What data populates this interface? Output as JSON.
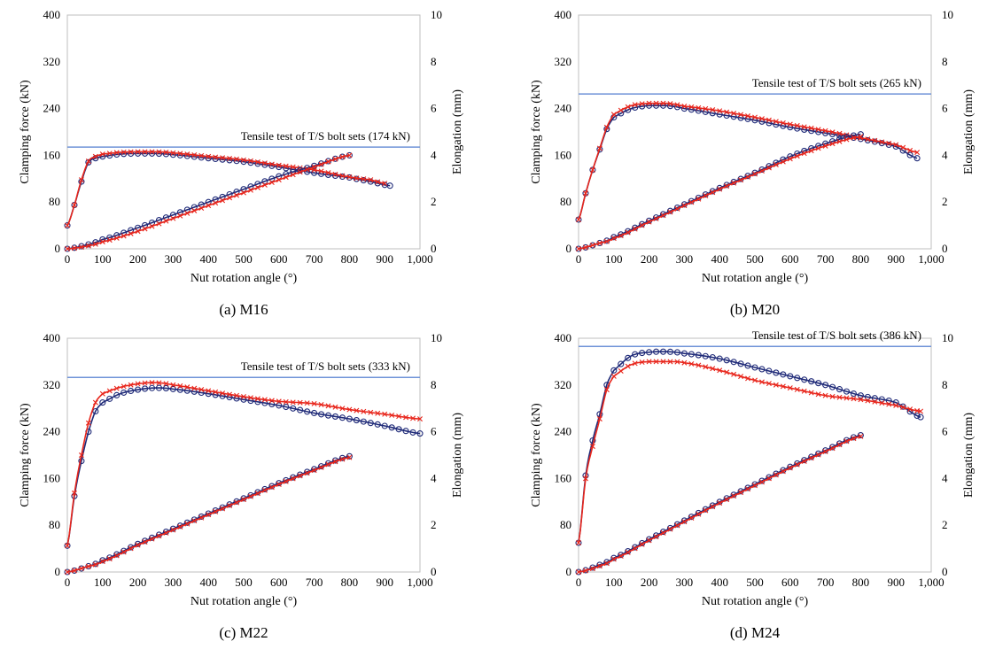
{
  "figure": {
    "captions": [
      "(a) M16",
      "(b) M20",
      "(c) M22",
      "(d) M24"
    ]
  },
  "colors": {
    "red": "#e8261c",
    "blue": "#1f2a78",
    "ref": "#6f93d8",
    "axis": "#bfbfbf"
  },
  "chart_data": [
    {
      "type": "line",
      "panel": "a",
      "caption": "(a) M16",
      "xlabel": "Nut rotation angle (°)",
      "ylabel": "Clamping force (kN)",
      "y2label": "Elongation (mm)",
      "xlim": [
        0,
        1000
      ],
      "ylim": [
        0,
        400
      ],
      "y2lim": [
        0,
        10
      ],
      "xticks": [
        "0",
        "100",
        "200",
        "300",
        "400",
        "500",
        "600",
        "700",
        "800",
        "900",
        "1,000"
      ],
      "yticks": [
        "0",
        "80",
        "160",
        "240",
        "320",
        "400"
      ],
      "y2ticks": [
        "0",
        "2",
        "4",
        "6",
        "8",
        "10"
      ],
      "reference": {
        "value": 174,
        "label": "Tensile test of T/S bolt sets (174 kN)"
      },
      "series": [
        {
          "name": "Clamping force (blue, circles)",
          "axis": "left",
          "marker": "circle",
          "color": "#1f2a78",
          "x": [
            0,
            20,
            40,
            60,
            80,
            100,
            150,
            200,
            250,
            300,
            400,
            500,
            600,
            700,
            800,
            860,
            915
          ],
          "y": [
            40,
            75,
            115,
            148,
            155,
            158,
            162,
            163,
            163,
            161,
            155,
            149,
            140,
            130,
            122,
            115,
            108
          ]
        },
        {
          "name": "Clamping force (red, crosses)",
          "axis": "left",
          "marker": "cross",
          "color": "#e8261c",
          "x": [
            0,
            20,
            40,
            60,
            80,
            100,
            150,
            200,
            250,
            300,
            400,
            500,
            600,
            700,
            800,
            860,
            900
          ],
          "y": [
            40,
            75,
            118,
            150,
            158,
            162,
            165,
            166,
            166,
            164,
            158,
            152,
            143,
            135,
            123,
            118,
            112
          ]
        },
        {
          "name": "Elongation (blue, circles)",
          "axis": "right",
          "marker": "circle",
          "color": "#1f2a78",
          "x": [
            0,
            50,
            100,
            200,
            300,
            400,
            500,
            600,
            700,
            800
          ],
          "y": [
            0,
            0.15,
            0.4,
            0.9,
            1.45,
            2.0,
            2.55,
            3.1,
            3.55,
            4.0
          ]
        },
        {
          "name": "Elongation (red, crosses)",
          "axis": "right",
          "marker": "cross",
          "color": "#e8261c",
          "x": [
            0,
            50,
            100,
            200,
            300,
            400,
            500,
            600,
            700,
            800
          ],
          "y": [
            0,
            0.1,
            0.3,
            0.75,
            1.3,
            1.85,
            2.4,
            2.95,
            3.5,
            4.0
          ]
        }
      ]
    },
    {
      "type": "line",
      "panel": "b",
      "caption": "(b) M20",
      "xlabel": "Nut rotation angle (°)",
      "ylabel": "Clamping force (kN)",
      "y2label": "Elongation (mm)",
      "xlim": [
        0,
        1000
      ],
      "ylim": [
        0,
        400
      ],
      "y2lim": [
        0,
        10
      ],
      "xticks": [
        "0",
        "100",
        "200",
        "300",
        "400",
        "500",
        "600",
        "700",
        "800",
        "900",
        "1,000"
      ],
      "yticks": [
        "0",
        "80",
        "160",
        "240",
        "320",
        "400"
      ],
      "y2ticks": [
        "0",
        "2",
        "4",
        "6",
        "8",
        "10"
      ],
      "reference": {
        "value": 265,
        "label": "Tensile test of T/S bolt sets (265 kN)"
      },
      "series": [
        {
          "name": "Clamping force (blue, circles)",
          "axis": "left",
          "marker": "circle",
          "color": "#1f2a78",
          "x": [
            0,
            20,
            40,
            60,
            80,
            100,
            150,
            200,
            250,
            300,
            400,
            500,
            600,
            700,
            800,
            900,
            960
          ],
          "y": [
            50,
            95,
            135,
            170,
            205,
            225,
            240,
            245,
            245,
            240,
            230,
            220,
            208,
            198,
            188,
            175,
            155
          ]
        },
        {
          "name": "Clamping force (red, crosses)",
          "axis": "left",
          "marker": "cross",
          "color": "#e8261c",
          "x": [
            0,
            20,
            40,
            60,
            80,
            100,
            150,
            200,
            250,
            300,
            400,
            500,
            600,
            700,
            800,
            900,
            960
          ],
          "y": [
            50,
            95,
            135,
            172,
            208,
            230,
            245,
            249,
            249,
            244,
            236,
            225,
            213,
            202,
            190,
            178,
            165
          ]
        },
        {
          "name": "Elongation (blue, circles)",
          "axis": "right",
          "marker": "circle",
          "color": "#1f2a78",
          "x": [
            0,
            50,
            100,
            200,
            300,
            400,
            500,
            600,
            700,
            800
          ],
          "y": [
            0,
            0.2,
            0.5,
            1.2,
            1.9,
            2.6,
            3.25,
            3.95,
            4.5,
            4.9
          ]
        },
        {
          "name": "Elongation (red, crosses)",
          "axis": "right",
          "marker": "cross",
          "color": "#e8261c",
          "x": [
            0,
            50,
            100,
            200,
            300,
            400,
            500,
            600,
            700,
            800
          ],
          "y": [
            0,
            0.2,
            0.45,
            1.15,
            1.85,
            2.55,
            3.2,
            3.85,
            4.4,
            4.8
          ]
        }
      ]
    },
    {
      "type": "line",
      "panel": "c",
      "caption": "(c) M22",
      "xlabel": "Nut rotation angle (°)",
      "ylabel": "Clamping force (kN)",
      "y2label": "Elongation (mm)",
      "xlim": [
        0,
        1000
      ],
      "ylim": [
        0,
        400
      ],
      "y2lim": [
        0,
        10
      ],
      "xticks": [
        "0",
        "100",
        "200",
        "300",
        "400",
        "500",
        "600",
        "700",
        "800",
        "900",
        "1,000"
      ],
      "yticks": [
        "0",
        "80",
        "160",
        "240",
        "320",
        "400"
      ],
      "y2ticks": [
        "0",
        "2",
        "4",
        "6",
        "8",
        "10"
      ],
      "reference": {
        "value": 333,
        "label": "Tensile test of T/S bolt sets (333 kN)"
      },
      "series": [
        {
          "name": "Clamping force (blue, circles)",
          "axis": "left",
          "marker": "circle",
          "color": "#1f2a78",
          "x": [
            0,
            20,
            40,
            60,
            80,
            100,
            150,
            200,
            250,
            300,
            400,
            500,
            600,
            700,
            800,
            900,
            1000
          ],
          "y": [
            45,
            130,
            190,
            240,
            275,
            290,
            305,
            312,
            315,
            313,
            305,
            295,
            285,
            272,
            262,
            250,
            237
          ]
        },
        {
          "name": "Clamping force (red, crosses)",
          "axis": "left",
          "marker": "cross",
          "color": "#e8261c",
          "x": [
            0,
            20,
            40,
            60,
            80,
            100,
            150,
            200,
            250,
            300,
            400,
            500,
            600,
            700,
            800,
            900,
            1000
          ],
          "y": [
            45,
            135,
            200,
            255,
            290,
            305,
            316,
            322,
            324,
            320,
            310,
            300,
            292,
            288,
            278,
            270,
            262
          ]
        },
        {
          "name": "Elongation (blue, circles)",
          "axis": "right",
          "marker": "circle",
          "color": "#1f2a78",
          "x": [
            0,
            50,
            100,
            200,
            300,
            400,
            500,
            600,
            700,
            800
          ],
          "y": [
            0,
            0.2,
            0.5,
            1.2,
            1.85,
            2.5,
            3.15,
            3.8,
            4.4,
            4.95
          ]
        },
        {
          "name": "Elongation (red, crosses)",
          "axis": "right",
          "marker": "cross",
          "color": "#e8261c",
          "x": [
            0,
            50,
            100,
            200,
            300,
            400,
            500,
            600,
            700,
            800
          ],
          "y": [
            0,
            0.2,
            0.45,
            1.15,
            1.8,
            2.45,
            3.1,
            3.75,
            4.35,
            4.9
          ]
        }
      ]
    },
    {
      "type": "line",
      "panel": "d",
      "caption": "(d) M24",
      "xlabel": "Nut rotation angle (°)",
      "ylabel": "Clamping force (kN)",
      "y2label": "Elongation (mm)",
      "xlim": [
        0,
        1000
      ],
      "ylim": [
        0,
        400
      ],
      "y2lim": [
        0,
        10
      ],
      "xticks": [
        "0",
        "100",
        "200",
        "300",
        "400",
        "500",
        "600",
        "700",
        "800",
        "900",
        "1,000"
      ],
      "yticks": [
        "0",
        "80",
        "160",
        "240",
        "320",
        "400"
      ],
      "y2ticks": [
        "0",
        "2",
        "4",
        "6",
        "8",
        "10"
      ],
      "reference": {
        "value": 386,
        "label": "Tensile test of T/S bolt sets (386 kN)"
      },
      "series": [
        {
          "name": "Clamping force (blue, circles)",
          "axis": "left",
          "marker": "circle",
          "color": "#1f2a78",
          "x": [
            0,
            20,
            40,
            60,
            80,
            100,
            150,
            200,
            250,
            300,
            400,
            500,
            600,
            700,
            800,
            900,
            970
          ],
          "y": [
            50,
            165,
            225,
            270,
            320,
            345,
            370,
            376,
            377,
            374,
            365,
            350,
            335,
            320,
            302,
            290,
            265
          ]
        },
        {
          "name": "Clamping force (red, crosses)",
          "axis": "left",
          "marker": "cross",
          "color": "#e8261c",
          "x": [
            0,
            20,
            40,
            60,
            80,
            100,
            150,
            200,
            250,
            300,
            400,
            500,
            600,
            700,
            800,
            900,
            970
          ],
          "y": [
            50,
            160,
            215,
            262,
            312,
            335,
            355,
            360,
            360,
            358,
            345,
            328,
            315,
            302,
            295,
            285,
            275
          ]
        },
        {
          "name": "Elongation (blue, circles)",
          "axis": "right",
          "marker": "circle",
          "color": "#1f2a78",
          "x": [
            0,
            50,
            100,
            200,
            300,
            400,
            500,
            600,
            700,
            800
          ],
          "y": [
            0,
            0.25,
            0.6,
            1.4,
            2.2,
            3.0,
            3.75,
            4.5,
            5.2,
            5.85
          ]
        },
        {
          "name": "Elongation (red, crosses)",
          "axis": "right",
          "marker": "cross",
          "color": "#e8261c",
          "x": [
            0,
            50,
            100,
            200,
            300,
            400,
            500,
            600,
            700,
            800
          ],
          "y": [
            0,
            0.2,
            0.55,
            1.35,
            2.15,
            2.95,
            3.7,
            4.45,
            5.15,
            5.8
          ]
        }
      ]
    }
  ]
}
